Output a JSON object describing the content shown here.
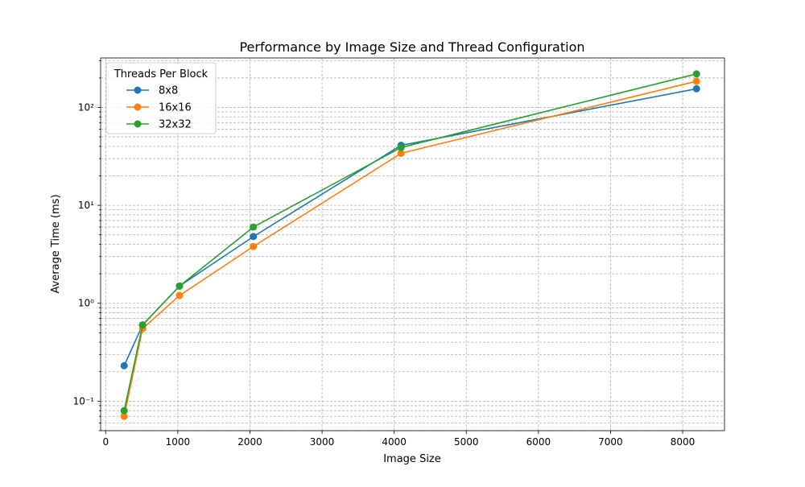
{
  "chart_data": {
    "type": "line",
    "title": "Performance by Image Size and Thread Configuration",
    "xlabel": "Image Size",
    "ylabel": "Average Time (ms)",
    "x": [
      256,
      512,
      1024,
      2048,
      4096,
      8192
    ],
    "xlim": [
      -70,
      8580
    ],
    "ylim": [
      0.05,
      320
    ],
    "y_scale": "log",
    "x_ticks": [
      0,
      1000,
      2000,
      3000,
      4000,
      5000,
      6000,
      7000,
      8000
    ],
    "y_ticks": [
      0.1,
      1,
      10,
      100
    ],
    "y_tick_labels": [
      "10⁻¹",
      "10⁰",
      "10¹",
      "10²"
    ],
    "grid": true,
    "legend": {
      "title": "Threads Per Block",
      "placement": "top-left"
    },
    "series": [
      {
        "name": "8x8",
        "color": "#1f77b4",
        "values": [
          0.23,
          0.6,
          1.5,
          4.8,
          41,
          155
        ]
      },
      {
        "name": "16x16",
        "color": "#ff7f0e",
        "values": [
          0.07,
          0.55,
          1.2,
          3.8,
          34,
          185
        ]
      },
      {
        "name": "32x32",
        "color": "#2ca02c",
        "values": [
          0.08,
          0.6,
          1.5,
          6.0,
          39,
          220
        ]
      }
    ]
  }
}
